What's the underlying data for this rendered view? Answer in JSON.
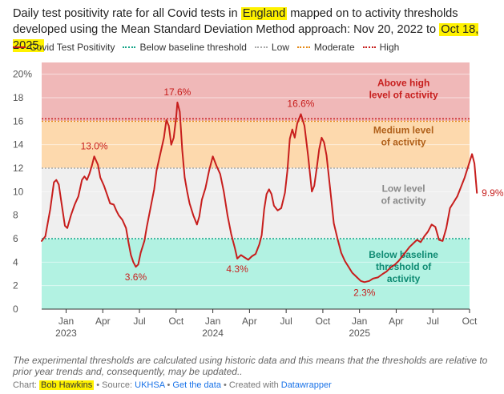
{
  "title": {
    "p1": "Daily test positivity rate for all Covid tests in ",
    "h1": "England",
    "p2": " mapped on to activity thresholds developed using the Mean Standard Deviation Method approach: Nov 20, 2022 to ",
    "h2": "Oct 18, 2025."
  },
  "legend": [
    {
      "label": "Covid Test Positivity",
      "color": "#c71e1d",
      "style": "line"
    },
    {
      "label": "Below baseline threshold",
      "color": "#16a589",
      "style": "dotted"
    },
    {
      "label": "Low",
      "color": "#aaaaaa",
      "style": "dotted"
    },
    {
      "label": "Moderate",
      "color": "#e58a18",
      "style": "dotted"
    },
    {
      "label": "High",
      "color": "#c71e1d",
      "style": "dotted"
    }
  ],
  "footnote": "The experimental thresholds are calculated using historic data and this means that the thresholds are relative to prior year trends and, consequently, may be updated..",
  "credits": {
    "chart_prefix": "Chart: ",
    "author": "Bob Hawkins",
    "source_prefix": " • Source: ",
    "source": "UKHSA",
    "sep": " • ",
    "get_data": "Get the data",
    "created_prefix": " • Created with ",
    "tool": "Datawrapper"
  },
  "chart_data": {
    "type": "line",
    "title": "Daily test positivity rate for all Covid tests in England",
    "ylim": [
      0,
      21
    ],
    "yticks": [
      0,
      2,
      4,
      6,
      8,
      10,
      12,
      14,
      16,
      18,
      20
    ],
    "ytick_labels": [
      "0",
      "2",
      "4",
      "6",
      "8",
      "10",
      "12",
      "14",
      "16",
      "18",
      "20%"
    ],
    "xlim": [
      0,
      35
    ],
    "xticks": [
      {
        "x": 2,
        "label": "Jan",
        "year": "2023"
      },
      {
        "x": 5,
        "label": "Apr",
        "year": ""
      },
      {
        "x": 8,
        "label": "Jul",
        "year": ""
      },
      {
        "x": 11,
        "label": "Oct",
        "year": ""
      },
      {
        "x": 14,
        "label": "Jan",
        "year": "2024"
      },
      {
        "x": 17,
        "label": "Apr",
        "year": ""
      },
      {
        "x": 20,
        "label": "Jul",
        "year": ""
      },
      {
        "x": 23,
        "label": "Oct",
        "year": ""
      },
      {
        "x": 26,
        "label": "Jan",
        "year": "2025"
      },
      {
        "x": 29,
        "label": "Apr",
        "year": ""
      },
      {
        "x": 32,
        "label": "Jul",
        "year": ""
      },
      {
        "x": 35,
        "label": "Oct",
        "year": ""
      }
    ],
    "bands": [
      {
        "name": "Below baseline threshold of activity",
        "from": 0,
        "to": 6,
        "color": "#b2f2e2",
        "label_color": "#0f8b73",
        "label_lines": [
          "Below baseline",
          "threshold of",
          "activity"
        ],
        "label_y": 3.4
      },
      {
        "name": "Low level of activity",
        "from": 6,
        "to": 12,
        "color": "#efefef",
        "label_color": "#888888",
        "label_lines": [
          "Low level",
          "of activity"
        ],
        "label_y": 9.5
      },
      {
        "name": "Medium level of activity",
        "from": 12,
        "to": 16,
        "color": "#fdd9ad",
        "label_color": "#b0601a",
        "label_lines": [
          "Medium level",
          "of activity"
        ],
        "label_y": 14.5
      },
      {
        "name": "Above high level of activity",
        "from": 16,
        "to": 21,
        "color": "#f0b8b8",
        "label_color": "#c71e1d",
        "label_lines": [
          "Above high",
          "level of activity"
        ],
        "label_y": 18.5
      }
    ],
    "thresholds": [
      {
        "name": "Below baseline threshold",
        "value": 6,
        "color": "#16a589"
      },
      {
        "name": "Low",
        "value": 12,
        "color": "#aaaaaa"
      },
      {
        "name": "Moderate",
        "value": 16,
        "color": "#e58a18"
      },
      {
        "name": "High",
        "value": 16.2,
        "color": "#c71e1d"
      }
    ],
    "series": [
      {
        "name": "Covid Test Positivity",
        "color": "#c71e1d",
        "x": [
          0,
          0.3,
          0.7,
          1.0,
          1.2,
          1.4,
          1.6,
          1.9,
          2.1,
          2.4,
          2.7,
          3.0,
          3.3,
          3.5,
          3.7,
          3.9,
          4.1,
          4.3,
          4.6,
          4.8,
          5.1,
          5.4,
          5.6,
          5.9,
          6.1,
          6.3,
          6.6,
          6.9,
          7.1,
          7.3,
          7.5,
          7.7,
          7.9,
          8.1,
          8.4,
          8.6,
          8.9,
          9.2,
          9.4,
          9.7,
          10.0,
          10.2,
          10.4,
          10.6,
          10.8,
          11.0,
          11.1,
          11.3,
          11.5,
          11.7,
          11.9,
          12.1,
          12.4,
          12.7,
          12.9,
          13.1,
          13.4,
          13.7,
          14.0,
          14.3,
          14.6,
          14.9,
          15.2,
          15.5,
          15.8,
          16.0,
          16.3,
          16.6,
          16.9,
          17.2,
          17.5,
          17.8,
          18.0,
          18.2,
          18.4,
          18.6,
          18.8,
          19.0,
          19.3,
          19.6,
          19.9,
          20.1,
          20.3,
          20.5,
          20.7,
          20.9,
          21.2,
          21.5,
          21.8,
          22.1,
          22.3,
          22.5,
          22.7,
          22.9,
          23.1,
          23.3,
          23.6,
          23.9,
          24.2,
          24.5,
          24.8,
          25.1,
          25.4,
          25.8,
          26.1,
          26.4,
          26.8,
          27.1,
          27.5,
          27.9,
          28.2,
          28.6,
          28.9,
          29.2,
          29.5,
          29.8,
          30.1,
          30.4,
          30.7,
          31.0,
          31.3,
          31.6,
          31.9,
          32.2,
          32.5,
          32.8,
          33.1,
          33.4,
          33.7,
          34.0,
          34.3,
          34.6,
          34.9,
          35.2,
          35.4,
          35.6
        ],
        "values": [
          5.8,
          6.2,
          8.5,
          10.8,
          11.0,
          10.6,
          9.2,
          7.1,
          6.9,
          8.0,
          8.9,
          9.6,
          11.0,
          11.3,
          11.0,
          11.5,
          12.2,
          13.0,
          12.3,
          11.2,
          10.5,
          9.6,
          9.0,
          8.9,
          8.4,
          8.0,
          7.6,
          6.9,
          5.7,
          4.6,
          4.0,
          3.6,
          3.8,
          4.8,
          5.8,
          7.0,
          8.6,
          10.2,
          11.8,
          13.2,
          14.6,
          16.1,
          15.6,
          14.0,
          14.6,
          16.3,
          17.6,
          16.8,
          13.5,
          11.2,
          10.0,
          9.0,
          8.0,
          7.2,
          7.9,
          9.3,
          10.3,
          11.8,
          13.0,
          12.2,
          11.5,
          10.0,
          8.0,
          6.4,
          5.2,
          4.3,
          4.6,
          4.4,
          4.2,
          4.5,
          4.7,
          5.5,
          6.3,
          8.5,
          9.8,
          10.2,
          9.8,
          8.8,
          8.4,
          8.6,
          9.9,
          11.8,
          14.5,
          15.3,
          14.6,
          15.8,
          16.6,
          15.6,
          13.0,
          10.0,
          10.5,
          12.0,
          13.6,
          14.6,
          14.2,
          13.1,
          10.2,
          7.3,
          6.0,
          4.8,
          4.1,
          3.6,
          3.1,
          2.7,
          2.4,
          2.3,
          2.4,
          2.6,
          2.7,
          3.0,
          3.2,
          3.6,
          3.8,
          4.1,
          4.5,
          4.9,
          5.3,
          5.6,
          5.9,
          5.7,
          6.2,
          6.6,
          7.2,
          7.0,
          5.9,
          5.8,
          6.9,
          8.6,
          9.1,
          9.6,
          10.4,
          11.2,
          12.2,
          13.2,
          12.4,
          9.9
        ]
      }
    ],
    "annotations": [
      {
        "text": "13.0%",
        "x": 4.3,
        "y": 13.0,
        "pos": "above"
      },
      {
        "text": "17.6%",
        "x": 11.1,
        "y": 17.6,
        "pos": "above"
      },
      {
        "text": "3.6%",
        "x": 7.7,
        "y": 3.6,
        "pos": "below"
      },
      {
        "text": "4.3%",
        "x": 16.0,
        "y": 4.3,
        "pos": "below"
      },
      {
        "text": "16.6%",
        "x": 21.2,
        "y": 16.6,
        "pos": "above"
      },
      {
        "text": "2.3%",
        "x": 26.4,
        "y": 2.3,
        "pos": "below"
      },
      {
        "text": "9.9%",
        "x": 35.6,
        "y": 9.9,
        "pos": "right"
      }
    ]
  }
}
